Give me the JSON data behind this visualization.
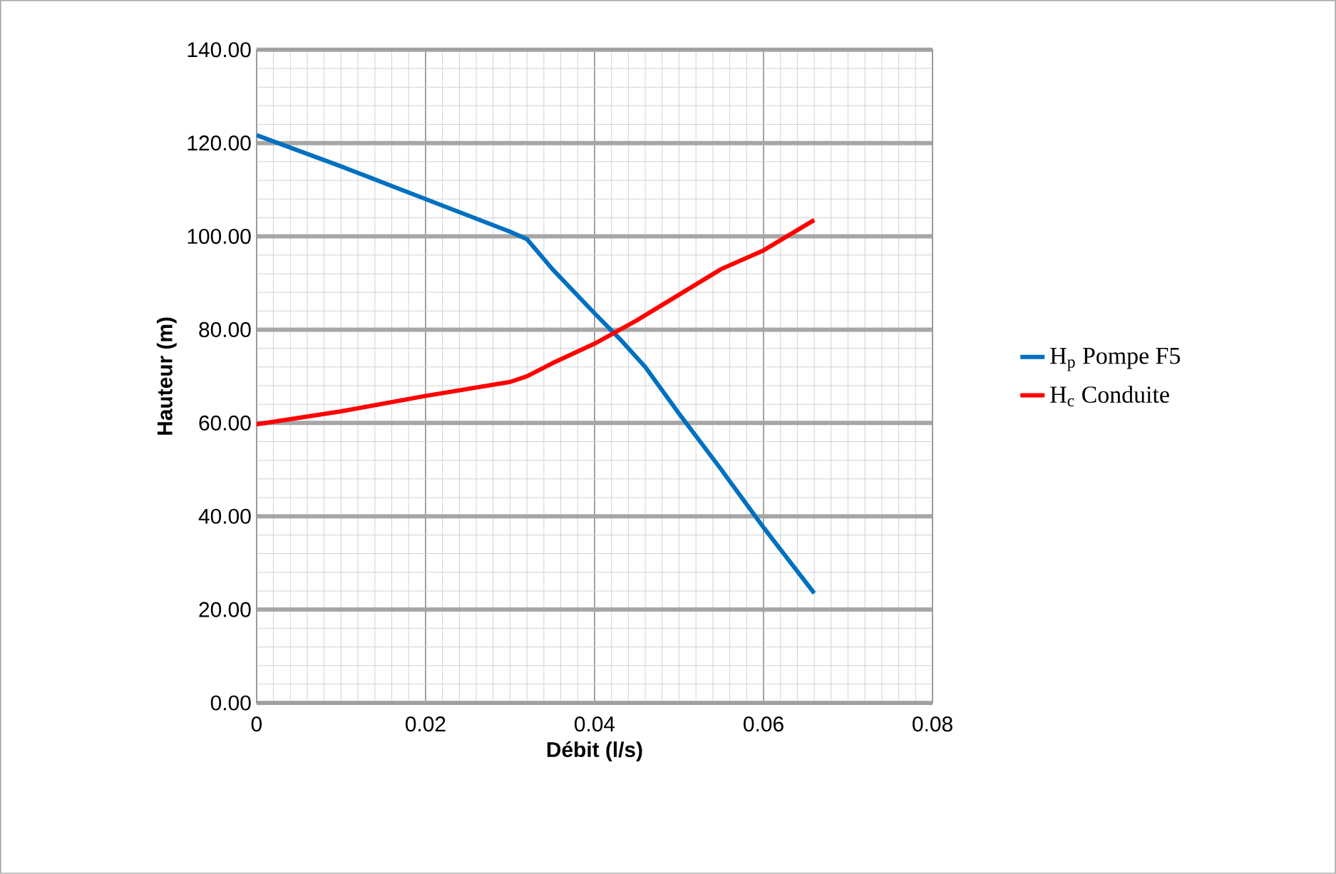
{
  "chart_data": {
    "type": "line",
    "xlabel": "Débit (l/s)",
    "ylabel": "Hauteur (m)",
    "xlim": [
      0,
      0.08
    ],
    "xticks": [
      0,
      0.02,
      0.04,
      0.06,
      0.08
    ],
    "ylim": [
      0,
      140
    ],
    "yticks": [
      {
        "value": 0,
        "label": "0.00"
      },
      {
        "value": 20,
        "label": "20.00"
      },
      {
        "value": 40,
        "label": "40.00"
      },
      {
        "value": 60,
        "label": "60.00"
      },
      {
        "value": 80,
        "label": "80.00"
      },
      {
        "value": 100,
        "label": "100.00"
      },
      {
        "value": 120,
        "label": "120.00"
      },
      {
        "value": 140,
        "label": "140.00"
      }
    ],
    "grid": true,
    "legend": "right",
    "marker": "none",
    "line_style": "solid",
    "series": [
      {
        "name": "H$_{p}$ Pompe F5",
        "color": "#0070c0",
        "x": [
          0,
          0.01,
          0.02,
          0.03,
          0.032,
          0.035,
          0.04,
          0.043,
          0.046,
          0.05,
          0.055,
          0.06,
          0.066
        ],
        "values": [
          121.7,
          115,
          108,
          101,
          99.4,
          93,
          83.5,
          78,
          72,
          62,
          50,
          37.6,
          23.5
        ]
      },
      {
        "name": "H$_{c}$ Conduite",
        "color": "#ff0000",
        "x": [
          0,
          0.01,
          0.02,
          0.03,
          0.032,
          0.035,
          0.04,
          0.045,
          0.05,
          0.055,
          0.06,
          0.066
        ],
        "values": [
          59.7,
          62.5,
          65.8,
          68.8,
          70,
          72.8,
          77,
          82,
          87.5,
          93,
          97,
          103.5
        ]
      }
    ]
  }
}
